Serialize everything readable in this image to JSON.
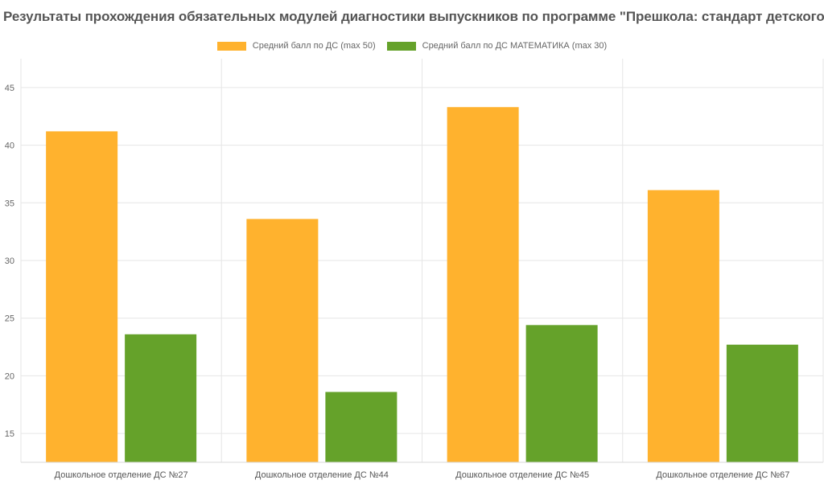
{
  "chart_data": {
    "type": "bar",
    "title": "Результаты прохождения обязательных модулей диагностики выпускников по программе \"Прешкола: стандарт детского сада\"",
    "categories": [
      "Дошкольное отделение ДС №27",
      "Дошкольное отделение ДС №44",
      "Дошкольное отделение ДС №45",
      "Дошкольное отделение ДС №67"
    ],
    "series": [
      {
        "name": "Средний балл по ДС (max 50)",
        "color": "#FFB22E",
        "values": [
          41.2,
          33.6,
          43.3,
          36.1
        ]
      },
      {
        "name": "Средний балл по ДС МАТЕМАТИКА (max 30)",
        "color": "#65A22A",
        "values": [
          23.6,
          18.6,
          24.4,
          22.7
        ]
      }
    ],
    "ylim": [
      12.5,
      47.5
    ],
    "yticks": [
      15,
      20,
      25,
      30,
      35,
      40,
      45
    ],
    "legend_position": "top",
    "grid": true
  }
}
